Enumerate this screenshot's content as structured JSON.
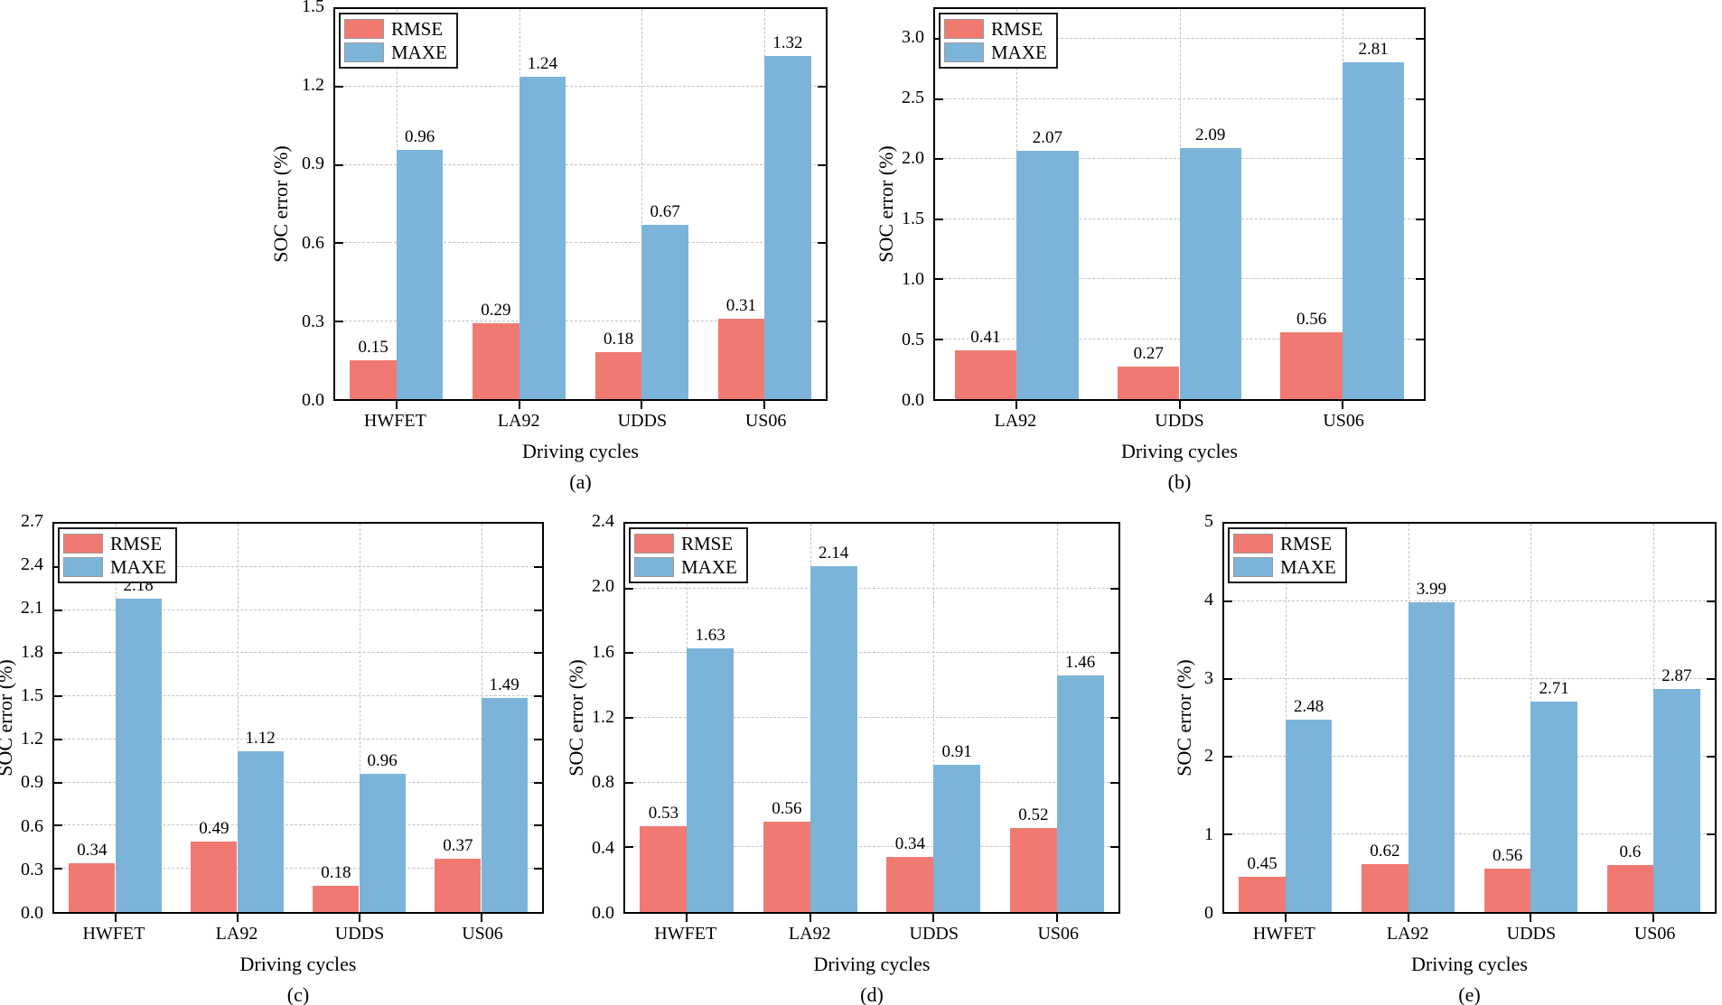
{
  "figure": {
    "description": "Five bar charts comparing RMSE and MAXE of SOC error across driving cycles",
    "legend_labels": [
      "RMSE",
      "MAXE"
    ],
    "colors": {
      "rmse": "#f07a72",
      "maxe": "#7cb4d9",
      "grid": "#c3c3c3",
      "frame": "#000000"
    }
  },
  "chart_data": [
    {
      "id": "a",
      "type": "bar",
      "caption": "(a)",
      "xlabel": "Driving cycles",
      "ylabel": "SOC error (%)",
      "categories": [
        "HWFET",
        "LA92",
        "UDDS",
        "US06"
      ],
      "series": [
        {
          "name": "RMSE",
          "color": "#f07a72",
          "values": [
            0.15,
            0.29,
            0.18,
            0.31
          ]
        },
        {
          "name": "MAXE",
          "color": "#7cb4d9",
          "values": [
            0.96,
            1.24,
            0.67,
            1.32
          ]
        }
      ],
      "ylim": [
        0,
        1.5
      ],
      "yticks": [
        0.0,
        0.3,
        0.6,
        0.9,
        1.2,
        1.5
      ],
      "ytick_decimals": 1,
      "grid": true,
      "legend_position": "top-left"
    },
    {
      "id": "b",
      "type": "bar",
      "caption": "(b)",
      "xlabel": "Driving cycles",
      "ylabel": "SOC error (%)",
      "categories": [
        "LA92",
        "UDDS",
        "US06"
      ],
      "series": [
        {
          "name": "RMSE",
          "color": "#f07a72",
          "values": [
            0.41,
            0.27,
            0.56
          ]
        },
        {
          "name": "MAXE",
          "color": "#7cb4d9",
          "values": [
            2.07,
            2.09,
            2.81
          ]
        }
      ],
      "ylim": [
        0,
        3.25
      ],
      "yticks": [
        0.0,
        0.5,
        1.0,
        1.5,
        2.0,
        2.5,
        3.0
      ],
      "ytick_decimals": 1,
      "grid": true,
      "legend_position": "top-left"
    },
    {
      "id": "c",
      "type": "bar",
      "caption": "(c)",
      "xlabel": "Driving cycles",
      "ylabel": "SOC error (%)",
      "categories": [
        "HWFET",
        "LA92",
        "UDDS",
        "US06"
      ],
      "series": [
        {
          "name": "RMSE",
          "color": "#f07a72",
          "values": [
            0.34,
            0.49,
            0.18,
            0.37
          ]
        },
        {
          "name": "MAXE",
          "color": "#7cb4d9",
          "values": [
            2.18,
            1.12,
            0.96,
            1.49
          ]
        }
      ],
      "ylim": [
        0,
        2.7
      ],
      "yticks": [
        0.0,
        0.3,
        0.6,
        0.9,
        1.2,
        1.5,
        1.8,
        2.1,
        2.4,
        2.7
      ],
      "ytick_decimals": 1,
      "grid": true,
      "legend_position": "top-left"
    },
    {
      "id": "d",
      "type": "bar",
      "caption": "(d)",
      "xlabel": "Driving cycles",
      "ylabel": "SOC error (%)",
      "categories": [
        "HWFET",
        "LA92",
        "UDDS",
        "US06"
      ],
      "series": [
        {
          "name": "RMSE",
          "color": "#f07a72",
          "values": [
            0.53,
            0.56,
            0.34,
            0.52
          ]
        },
        {
          "name": "MAXE",
          "color": "#7cb4d9",
          "values": [
            1.63,
            2.14,
            0.91,
            1.46
          ]
        }
      ],
      "ylim": [
        0,
        2.4
      ],
      "yticks": [
        0.0,
        0.4,
        0.8,
        1.2,
        1.6,
        2.0,
        2.4
      ],
      "ytick_decimals": 1,
      "grid": true,
      "legend_position": "top-left"
    },
    {
      "id": "e",
      "type": "bar",
      "caption": "(e)",
      "xlabel": "Driving cycles",
      "ylabel": "SOC error (%)",
      "categories": [
        "HWFET",
        "LA92",
        "UDDS",
        "US06"
      ],
      "series": [
        {
          "name": "RMSE",
          "color": "#f07a72",
          "values": [
            0.45,
            0.62,
            0.56,
            0.6
          ]
        },
        {
          "name": "MAXE",
          "color": "#7cb4d9",
          "values": [
            2.48,
            3.99,
            2.71,
            2.87
          ]
        }
      ],
      "ylim": [
        0,
        5
      ],
      "yticks": [
        0,
        1,
        2,
        3,
        4,
        5
      ],
      "ytick_decimals": 0,
      "grid": true,
      "legend_position": "top-left"
    }
  ]
}
